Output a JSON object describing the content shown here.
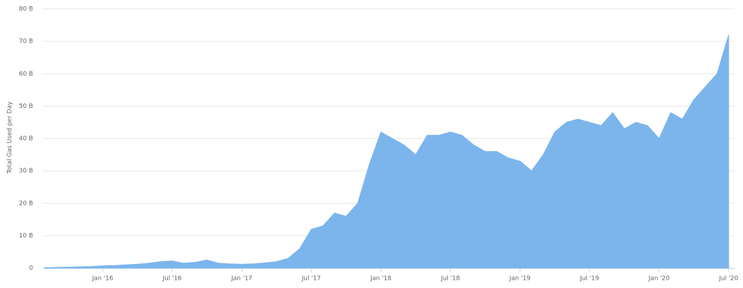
{
  "chart_data": {
    "type": "area",
    "y_label": "Total Gas Used per Day",
    "x": [
      "Aug '15",
      "Sep '15",
      "Oct '15",
      "Nov '15",
      "Dec '15",
      "Jan '16",
      "Feb '16",
      "Mar '16",
      "Apr '16",
      "May '16",
      "Jun '16",
      "Jul '16",
      "Aug '16",
      "Sep '16",
      "Oct '16",
      "Nov '16",
      "Dec '16",
      "Jan '17",
      "Feb '17",
      "Mar '17",
      "Apr '17",
      "May '17",
      "Jun '17",
      "Jul '17",
      "Aug '17",
      "Sep '17",
      "Oct '17",
      "Nov '17",
      "Dec '17",
      "Jan '18",
      "Feb '18",
      "Mar '18",
      "Apr '18",
      "May '18",
      "Jun '18",
      "Jul '18",
      "Aug '18",
      "Sep '18",
      "Oct '18",
      "Nov '18",
      "Dec '18",
      "Jan '19",
      "Feb '19",
      "Mar '19",
      "Apr '19",
      "May '19",
      "Jun '19",
      "Jul '19",
      "Aug '19",
      "Sep '19",
      "Oct '19",
      "Nov '19",
      "Dec '19",
      "Jan '20",
      "Feb '20",
      "Mar '20",
      "Apr '20",
      "May '20",
      "Jun '20",
      "Jul '20"
    ],
    "xticks": [
      "Jan '16",
      "Jul '16",
      "Jan '17",
      "Jul '17",
      "Jan '18",
      "Jul '18",
      "Jan '19",
      "Jul '19",
      "Jan '20",
      "Jul '20"
    ],
    "series": [
      {
        "color": "#7cb5ec",
        "values": [
          0.1,
          0.2,
          0.3,
          0.4,
          0.5,
          0.7,
          0.8,
          1.0,
          1.2,
          1.5,
          2.0,
          2.2,
          1.5,
          1.8,
          2.5,
          1.5,
          1.3,
          1.2,
          1.3,
          1.6,
          2.0,
          3.0,
          6,
          12,
          13,
          17,
          16,
          20,
          32,
          42,
          40,
          38,
          35,
          41,
          41,
          42,
          41,
          38,
          36,
          36,
          34,
          33,
          30,
          35,
          42,
          45,
          46,
          45,
          44,
          48,
          43,
          45,
          44,
          40,
          48,
          46,
          52,
          56,
          60,
          72
        ]
      }
    ],
    "ylim": [
      0,
      80
    ],
    "yticks": [
      0,
      {
        "value": 10,
        "label": "10 B"
      },
      {
        "value": 20,
        "label": "20 B"
      },
      {
        "value": 30,
        "label": "30 B"
      },
      {
        "value": 40,
        "label": "40 B"
      },
      {
        "value": 50,
        "label": "50 B"
      },
      {
        "value": 60,
        "label": "60 B"
      },
      {
        "value": 70,
        "label": "70 B"
      },
      {
        "value": 80,
        "label": "80 B"
      }
    ],
    "grid": true
  }
}
